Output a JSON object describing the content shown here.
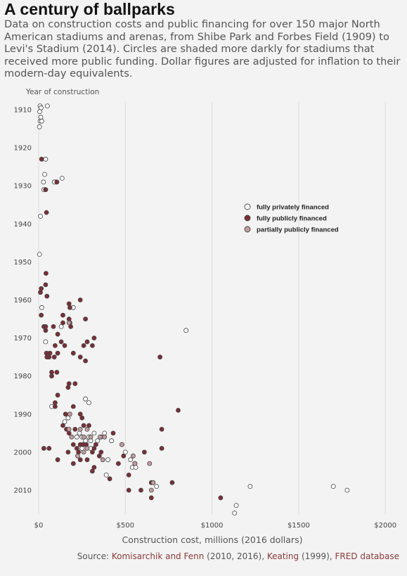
{
  "title": "A century of ballparks",
  "subtitle": "Data on construction costs and public financing for over 150 major North American stadiums and arenas, from Shibe Park and Forbes Field (1909) to Levi's Stadium (2014). Circles are shaded more darkly for stadiums that received more public funding. Dollar figures are adjusted for inflation to their modern-day equivalents.",
  "source": {
    "prefix": "Source: ",
    "ref1": "Komisarchik and Fenn",
    "ref1_suffix": " (2010, 2016), ",
    "ref2": "Keating",
    "ref2_suffix": " (1999), ",
    "ref3": "FRED database"
  },
  "colors": {
    "private": "#ffffff",
    "public": "#7b2e36",
    "partial": "#c49ca0",
    "stroke": "#444444",
    "grid": "#dddddd",
    "background": "#f3f3f3"
  },
  "chart_data": {
    "type": "scatter",
    "xlabel": "Construction cost, millions (2016 dollars)",
    "ylabel": "Year of construction",
    "xlim": [
      0,
      2050
    ],
    "ylim": [
      1909,
      2016
    ],
    "x_ticks": [
      0,
      500,
      1000,
      1500,
      2000
    ],
    "x_tick_labels": [
      "$0",
      "$500",
      "$1000",
      "$1500",
      "$2000"
    ],
    "y_ticks": [
      1910,
      1920,
      1930,
      1940,
      1950,
      1960,
      1970,
      1980,
      1990,
      2000,
      2010
    ],
    "y_tick_labels": [
      "1910",
      "1920",
      "1930",
      "1940",
      "1950",
      "1960",
      "1970",
      "1980",
      "1990",
      "2000",
      "2010"
    ],
    "y_reversed": true,
    "grid": "vertical",
    "legend_position": "right-middle",
    "series": [
      {
        "name": "fully privately financed",
        "color_key": "private",
        "points": [
          [
            8,
            1909
          ],
          [
            14,
            1909.5
          ],
          [
            50,
            1909
          ],
          [
            6,
            1910.5
          ],
          [
            12,
            1912
          ],
          [
            9,
            1913
          ],
          [
            18,
            1913
          ],
          [
            5,
            1914.5
          ],
          [
            40,
            1923
          ],
          [
            35,
            1927
          ],
          [
            28,
            1929
          ],
          [
            100,
            1929
          ],
          [
            90,
            1929
          ],
          [
            135,
            1928
          ],
          [
            30,
            1931
          ],
          [
            40,
            1931
          ],
          [
            10,
            1938
          ],
          [
            5,
            1948
          ],
          [
            18,
            1962
          ],
          [
            200,
            1962
          ],
          [
            130,
            1967
          ],
          [
            180,
            1966
          ],
          [
            40,
            1971
          ],
          [
            850,
            1968
          ],
          [
            75,
            1988
          ],
          [
            270,
            1986
          ],
          [
            290,
            1987
          ],
          [
            150,
            1992
          ],
          [
            170,
            1991
          ],
          [
            220,
            1996
          ],
          [
            235,
            1995
          ],
          [
            250,
            1996
          ],
          [
            270,
            1997
          ],
          [
            290,
            1996
          ],
          [
            300,
            1997
          ],
          [
            320,
            1995
          ],
          [
            340,
            1997
          ],
          [
            360,
            1996
          ],
          [
            380,
            1995
          ],
          [
            260,
            1998
          ],
          [
            300,
            1999
          ],
          [
            420,
            1997
          ],
          [
            230,
            1999
          ],
          [
            250,
            1999
          ],
          [
            400,
            2002
          ],
          [
            390,
            2006
          ],
          [
            500,
            2000
          ],
          [
            530,
            2002
          ],
          [
            540,
            2004
          ],
          [
            560,
            2004
          ],
          [
            680,
            2009
          ],
          [
            1220,
            2009
          ],
          [
            1700,
            2009
          ],
          [
            1780,
            2010
          ],
          [
            1140,
            2014
          ],
          [
            1130,
            2016
          ]
        ]
      },
      {
        "name": "fully publicly financed",
        "color_key": "public",
        "points": [
          [
            17,
            1923
          ],
          [
            105,
            1929
          ],
          [
            40,
            1931
          ],
          [
            45,
            1937
          ],
          [
            42,
            1953
          ],
          [
            40,
            1956
          ],
          [
            15,
            1957
          ],
          [
            10,
            1958
          ],
          [
            48,
            1959
          ],
          [
            240,
            1960
          ],
          [
            175,
            1961
          ],
          [
            180,
            1962
          ],
          [
            15,
            1964
          ],
          [
            140,
            1964
          ],
          [
            175,
            1965
          ],
          [
            180,
            1966
          ],
          [
            270,
            1965
          ],
          [
            30,
            1967
          ],
          [
            40,
            1967
          ],
          [
            85,
            1967
          ],
          [
            140,
            1966
          ],
          [
            185,
            1967
          ],
          [
            40,
            1968
          ],
          [
            110,
            1969
          ],
          [
            130,
            1971
          ],
          [
            150,
            1972
          ],
          [
            320,
            1970
          ],
          [
            280,
            1971
          ],
          [
            310,
            1972
          ],
          [
            260,
            1972
          ],
          [
            95,
            1972
          ],
          [
            45,
            1974
          ],
          [
            65,
            1974
          ],
          [
            110,
            1974
          ],
          [
            200,
            1974
          ],
          [
            60,
            1975
          ],
          [
            48,
            1975
          ],
          [
            90,
            1975
          ],
          [
            240,
            1975
          ],
          [
            270,
            1976
          ],
          [
            700,
            1975
          ],
          [
            75,
            1979
          ],
          [
            105,
            1979
          ],
          [
            75,
            1980
          ],
          [
            170,
            1983
          ],
          [
            175,
            1982
          ],
          [
            210,
            1982
          ],
          [
            110,
            1985
          ],
          [
            95,
            1987
          ],
          [
            95,
            1988
          ],
          [
            200,
            1988
          ],
          [
            805,
            1989
          ],
          [
            155,
            1990
          ],
          [
            240,
            1990
          ],
          [
            250,
            1991
          ],
          [
            140,
            1993
          ],
          [
            290,
            1993
          ],
          [
            160,
            1994
          ],
          [
            260,
            1993
          ],
          [
            710,
            1994
          ],
          [
            210,
            1994
          ],
          [
            30,
            1999
          ],
          [
            60,
            1999
          ],
          [
            175,
            1995
          ],
          [
            430,
            1995
          ],
          [
            255,
            1998
          ],
          [
            240,
            1998
          ],
          [
            330,
            1998
          ],
          [
            200,
            1998
          ],
          [
            320,
            1999
          ],
          [
            220,
            1999
          ],
          [
            275,
            1998
          ],
          [
            230,
            2000
          ],
          [
            360,
            2000
          ],
          [
            350,
            2001
          ],
          [
            170,
            2000
          ],
          [
            310,
            2000
          ],
          [
            480,
            1998
          ],
          [
            710,
            1999
          ],
          [
            610,
            2000
          ],
          [
            490,
            2001
          ],
          [
            280,
            2002
          ],
          [
            240,
            2002
          ],
          [
            200,
            2003
          ],
          [
            320,
            2004
          ],
          [
            460,
            2003
          ],
          [
            310,
            2005
          ],
          [
            410,
            2007
          ],
          [
            520,
            2006
          ],
          [
            650,
            2008
          ],
          [
            770,
            2008
          ],
          [
            520,
            2010
          ],
          [
            590,
            2010
          ],
          [
            650,
            2012
          ],
          [
            110,
            2002
          ],
          [
            1050,
            2012
          ]
        ]
      },
      {
        "name": "partially publicly financed",
        "color_key": "partial",
        "points": [
          [
            175,
            1966
          ],
          [
            175,
            1994
          ],
          [
            180,
            1990
          ],
          [
            190,
            1996
          ],
          [
            260,
            1996
          ],
          [
            280,
            1994
          ],
          [
            380,
            1996
          ],
          [
            355,
            1996
          ],
          [
            240,
            1994
          ],
          [
            280,
            1999
          ],
          [
            225,
            2001
          ],
          [
            260,
            2000
          ],
          [
            300,
            1996
          ],
          [
            370,
            2002
          ],
          [
            480,
            1998
          ],
          [
            545,
            2001
          ],
          [
            555,
            2003
          ],
          [
            555,
            2003
          ],
          [
            640,
            2003
          ],
          [
            660,
            2008
          ],
          [
            650,
            2010
          ]
        ]
      }
    ],
    "legend": [
      "fully privately financed",
      "fully publicly financed",
      "partially publicly financed"
    ]
  }
}
